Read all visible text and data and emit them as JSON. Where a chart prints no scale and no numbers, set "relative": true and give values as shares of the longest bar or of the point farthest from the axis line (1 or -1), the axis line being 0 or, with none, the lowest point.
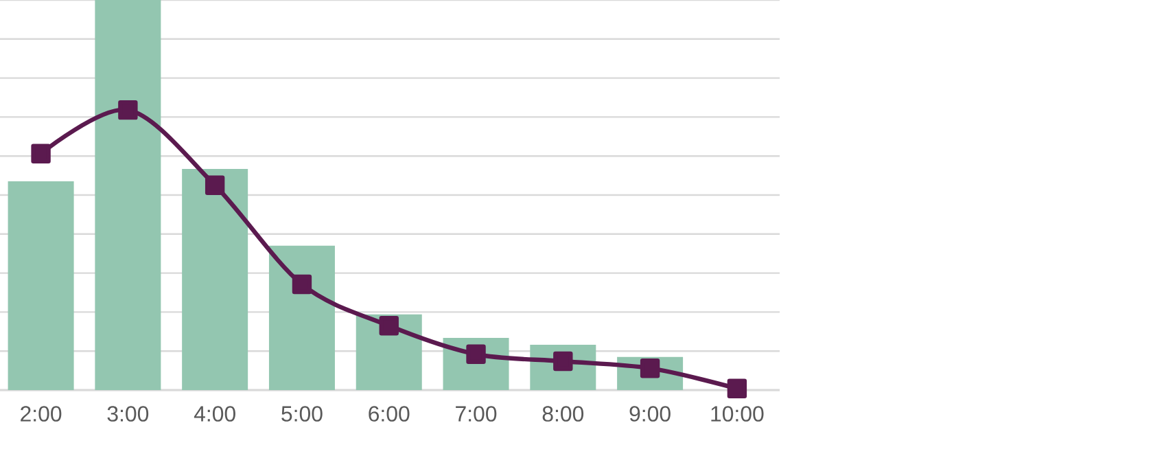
{
  "chart_data": {
    "type": "bar",
    "relative": true,
    "grid": "y",
    "categories": [
      "2:00",
      "3:00",
      "4:00",
      "5:00",
      "6:00",
      "7:00",
      "8:00",
      "9:00",
      "10:00"
    ],
    "series": [
      {
        "color": "#93c6b0",
        "values": [
          0.535,
          1.0,
          0.567,
          0.37,
          0.194,
          0.134,
          0.116,
          0.085,
          null
        ]
      },
      {
        "type": "line",
        "color": "#5b1a4f",
        "marker": "square",
        "line_style": "solid",
        "values": [
          0.606,
          0.718,
          0.525,
          0.271,
          0.165,
          0.092,
          0.074,
          0.056,
          0.004
        ]
      }
    ]
  }
}
